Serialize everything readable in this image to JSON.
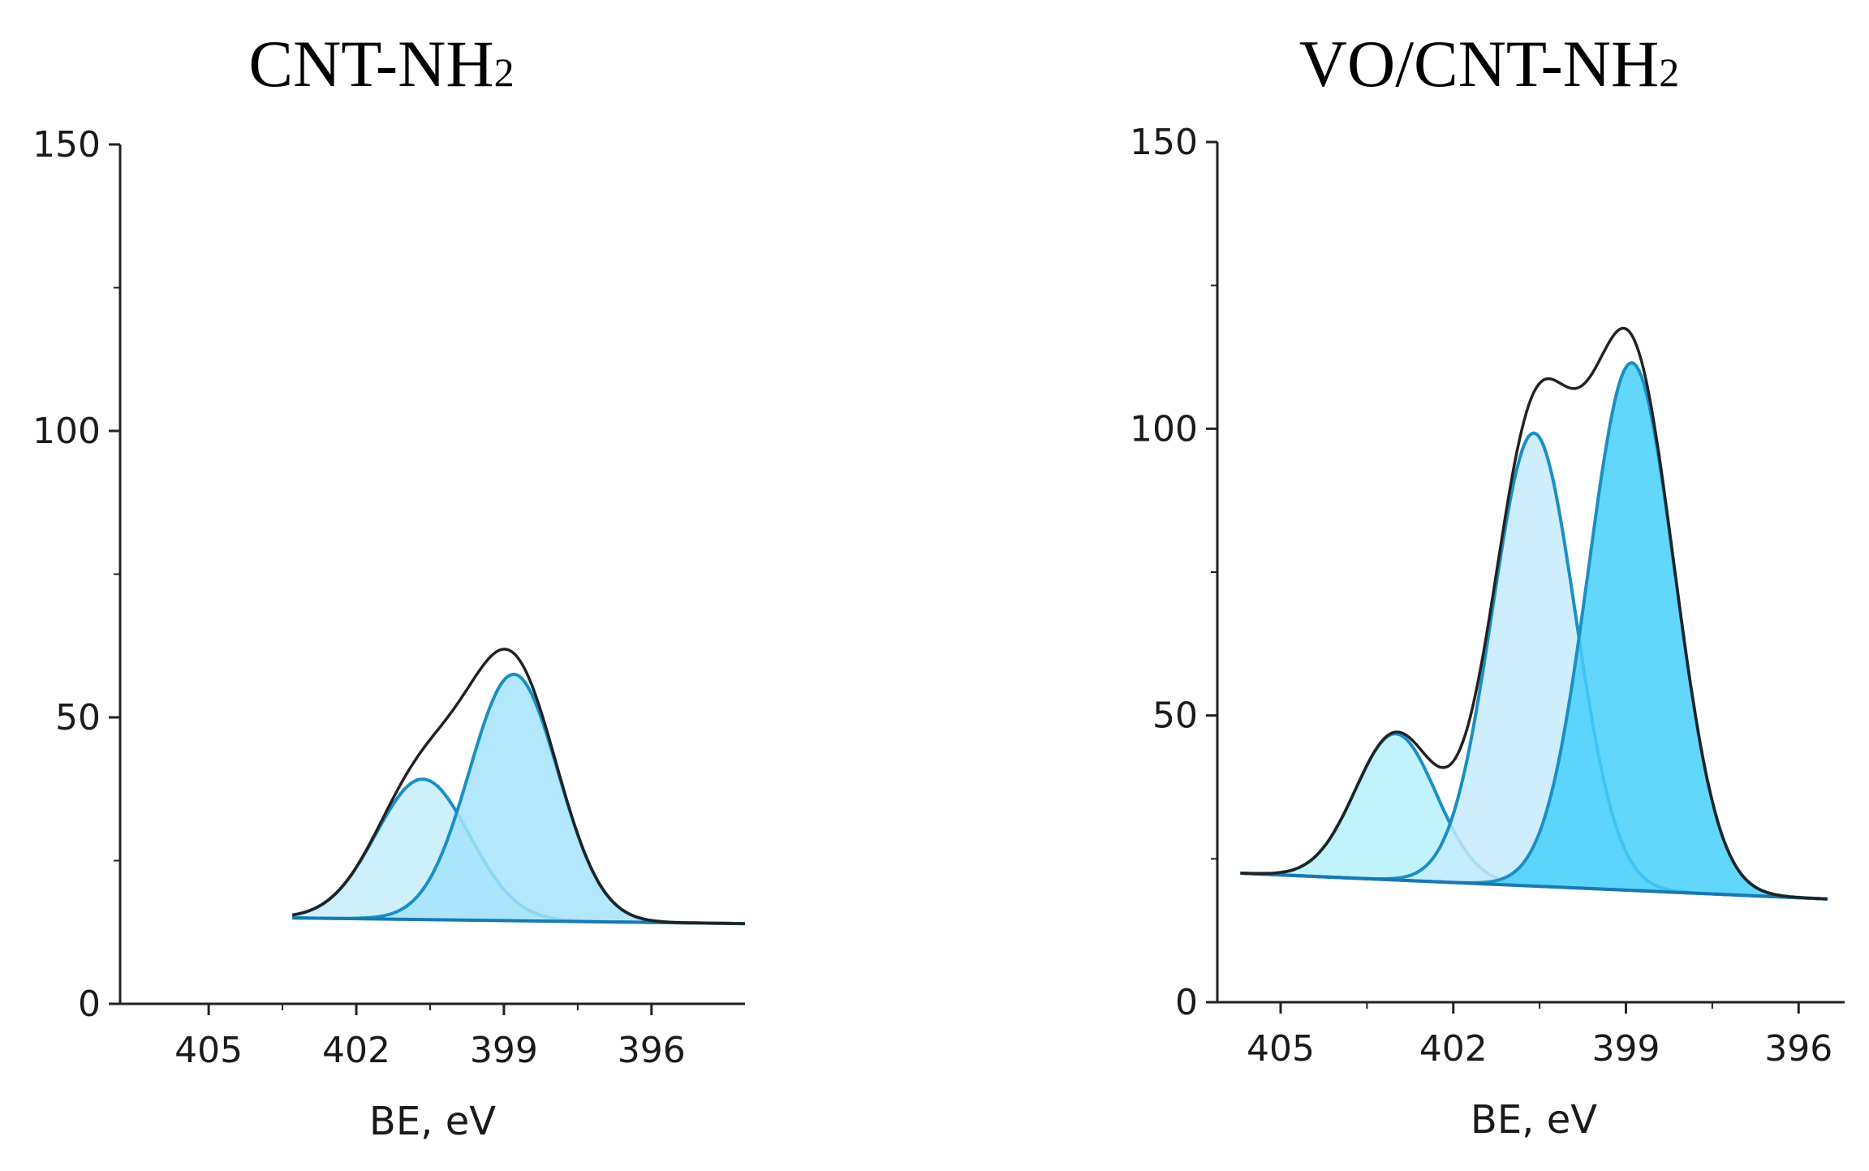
{
  "chart_data": [
    {
      "type": "area",
      "title": "CNT-NH",
      "title_subscript": "2",
      "xlabel": "BE, eV",
      "ylabel": "",
      "xlim": [
        406.8,
        394.1
      ],
      "ylim": [
        0,
        150
      ],
      "x_ticks": [
        405,
        402,
        399,
        396
      ],
      "y_ticks": [
        0,
        50,
        100,
        150
      ],
      "x_range": [
        403.3,
        394.1
      ],
      "baseline": [
        15,
        14
      ],
      "envelope_color": "#222222",
      "series": [
        {
          "name": "peak-1",
          "center": 400.65,
          "amplitude": 24.5,
          "sigma": 0.95,
          "fill": "#c6ecfc",
          "stroke": "#1a8fc4"
        },
        {
          "name": "peak-2",
          "center": 398.8,
          "amplitude": 43,
          "sigma": 0.9,
          "fill": "#a4e3fb",
          "stroke": "#1a8fc4"
        }
      ]
    },
    {
      "type": "area",
      "title": "VO/CNT-NH",
      "title_subscript": "2",
      "xlabel": "BE, eV",
      "ylabel": "",
      "xlim": [
        406.1,
        395.2
      ],
      "ylim": [
        0,
        150
      ],
      "x_ticks": [
        405,
        402,
        399,
        396
      ],
      "y_ticks": [
        0,
        50,
        100,
        150
      ],
      "x_range": [
        405.7,
        395.5
      ],
      "baseline": [
        22.5,
        18
      ],
      "envelope_color": "#222222",
      "series": [
        {
          "name": "peak-1",
          "center": 403.0,
          "amplitude": 25.5,
          "sigma": 0.7,
          "fill": "#b6f1fd",
          "stroke": "#1a8fc4"
        },
        {
          "name": "peak-2",
          "center": 400.6,
          "amplitude": 79,
          "sigma": 0.72,
          "fill": "#c5ebfd",
          "stroke": "#1a8fc4"
        },
        {
          "name": "peak-3",
          "center": 398.9,
          "amplitude": 92,
          "sigma": 0.75,
          "fill": "#48cffb",
          "stroke": "#1a8fc4"
        }
      ]
    }
  ]
}
